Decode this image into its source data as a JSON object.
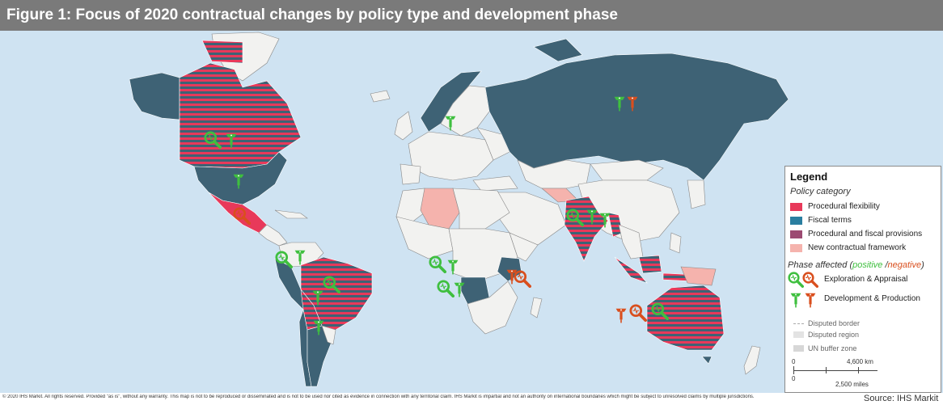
{
  "title": "Figure 1: Focus of 2020 contractual changes by policy type and development phase",
  "legend": {
    "title": "Legend",
    "policy_heading": "Policy category",
    "policy_items": [
      {
        "label": "Procedural flexibility",
        "color": "#e8395a"
      },
      {
        "label": "Fiscal terms",
        "color": "#2a7ea0"
      },
      {
        "label": "Procedural and fiscal provisions",
        "color": "#9c4a72"
      },
      {
        "label": "New contractual framework",
        "color": "#f5b3ad"
      }
    ],
    "phase_heading_prefix": "Phase affected (",
    "phase_positive": "positive",
    "phase_separator": " /",
    "phase_negative": "negative",
    "phase_heading_suffix": ")",
    "phase_items": [
      {
        "label": "Exploration & Appraisal",
        "icon": "magnifier-icon"
      },
      {
        "label": "Development & Production",
        "icon": "drilling-rig-icon"
      }
    ],
    "boundary_items": [
      {
        "label": "Disputed border"
      },
      {
        "label": "Disputed region"
      },
      {
        "label": "UN buffer zone"
      }
    ],
    "scale": {
      "km_start": "0",
      "km_end": "4,600 km",
      "mi_start": "0",
      "mi_end": "2,500 miles"
    }
  },
  "colors": {
    "ocean": "#cfe3f2",
    "land_default": "#f2f2f0",
    "fiscal_and_procedural_base": "#3e6275",
    "stripe": "#e8395a",
    "procedural_flexibility": "#e8395a",
    "new_framework": "#f5b3ad",
    "positive": "#3fbf3f",
    "negative": "#d94f1e"
  },
  "footer_note": "© 2020 IHS Markit. All rights reserved. Provided \"as is\", without any warranty. This map is not to be reproduced or disseminated and is not to be used nor cited as evidence in connection with any territorial claim. IHS Markit is impartial and not an authority on international boundaries which might be subject to unresolved claims by multiple jurisdictions.",
  "source": "Source: IHS Markit"
}
